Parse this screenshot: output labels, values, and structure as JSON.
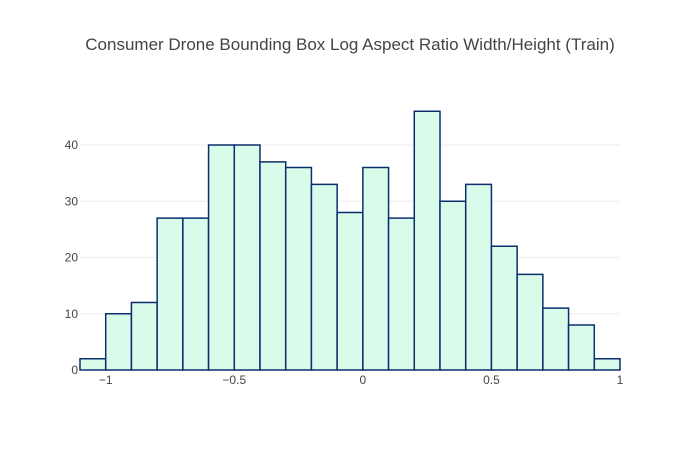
{
  "chart_data": {
    "type": "bar",
    "title": "Consumer Drone Bounding Box Log Aspect Ratio Width/Height (Train)",
    "xlabel": "",
    "ylabel": "",
    "xlim": [
      -1.1,
      1.0
    ],
    "ylim": [
      0,
      48
    ],
    "x_ticks": [
      -1,
      -0.5,
      0,
      0.5,
      1
    ],
    "x_tick_labels": [
      "−1",
      "−0.5",
      "0",
      "0.5",
      "1"
    ],
    "y_ticks": [
      0,
      10,
      20,
      30,
      40
    ],
    "y_tick_labels": [
      "0",
      "10",
      "20",
      "30",
      "40"
    ],
    "bin_size": 0.1,
    "bins_start": [
      -1.1,
      -1.0,
      -0.9,
      -0.8,
      -0.7,
      -0.6,
      -0.5,
      -0.4,
      -0.3,
      -0.2,
      -0.1,
      0.0,
      0.1,
      0.2,
      0.3,
      0.4,
      0.5,
      0.6,
      0.7,
      0.8,
      0.9
    ],
    "values": [
      2,
      10,
      12,
      27,
      27,
      40,
      40,
      37,
      36,
      33,
      28,
      36,
      27,
      46,
      30,
      33,
      22,
      17,
      11,
      8,
      2
    ],
    "grid": true,
    "colors": {
      "bar_fill": "#d8fbea",
      "bar_stroke": "#0b2e6f",
      "grid": "#eeeeee",
      "text": "#444444"
    }
  }
}
